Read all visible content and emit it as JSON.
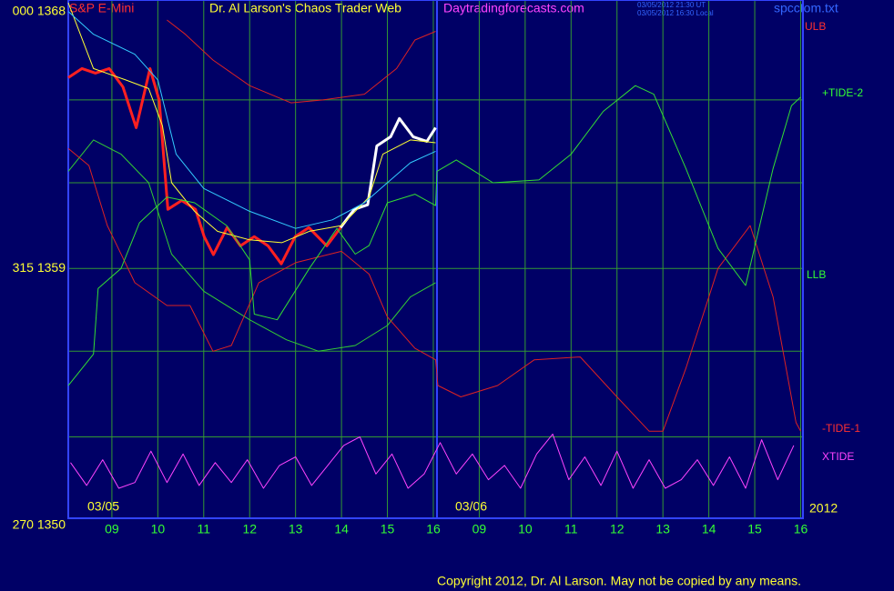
{
  "chart_data": {
    "type": "line",
    "texts": {
      "instrument": "S&P E-Mini",
      "title": "Dr. Al Larson's Chaos Trader Web",
      "site": "Daytradingforecasts.com",
      "timestamp_ut": "03/05/2012 21:30 UT",
      "timestamp_local": "03/05/2012 16:30 Local",
      "file": "spcctom.txt",
      "year": "2012",
      "copyright": "Copyright 2012, Dr. Al Larson. May not be copied by any means."
    },
    "dates": [
      "03/05",
      "03/06"
    ],
    "annotations": [
      "ULB",
      "+TIDE-2",
      "LLB",
      "-TIDE-1",
      "XTIDE"
    ],
    "xlim": [
      8.05,
      24.05
    ],
    "xticks": [
      {
        "value": 9,
        "label": "09"
      },
      10,
      11,
      12,
      13,
      14,
      15,
      16,
      {
        "value": 17,
        "label": "09"
      },
      {
        "value": 18,
        "label": "10"
      },
      {
        "value": 19,
        "label": "11"
      },
      {
        "value": 20,
        "label": "12"
      },
      {
        "value": 21,
        "label": "13"
      },
      {
        "value": 22,
        "label": "14"
      },
      {
        "value": 23,
        "label": "15"
      },
      {
        "value": 24,
        "label": "16"
      }
    ],
    "ylim": [
      1350.25,
      1368.4
    ],
    "yticks": [
      {
        "value": 1368,
        "label": "000 1368"
      },
      {
        "value": 1359,
        "label": "315 1359"
      },
      {
        "value": 1350,
        "label": "270 1350"
      }
    ],
    "ygrid": [
      1364.9,
      1362,
      1359,
      1356.1,
      1353.1
    ],
    "grid": true,
    "series": [
      {
        "color": "#ff2020",
        "width": 3,
        "x": [
          8.05,
          8.35,
          8.64,
          8.94,
          9.24,
          9.53,
          9.83,
          10.03,
          10.22,
          10.52,
          10.82,
          11.01,
          11.21,
          11.51,
          11.8,
          12.1,
          12.4,
          12.69,
          12.99,
          13.29,
          13.68,
          13.98
        ],
        "values": [
          1365.68,
          1366,
          1365.84,
          1366,
          1365.36,
          1363.93,
          1366,
          1364.88,
          1361.07,
          1361.38,
          1361.07,
          1360.11,
          1359.48,
          1360.43,
          1359.79,
          1360.11,
          1359.79,
          1359.16,
          1360.11,
          1360.43,
          1359.79,
          1360.43
        ]
      },
      {
        "color": "#ffffff",
        "width": 3,
        "x": [
          13.98,
          14.28,
          14.57,
          14.77,
          15.07,
          15.26,
          15.56,
          15.86,
          16.05
        ],
        "values": [
          1360.43,
          1361.07,
          1361.23,
          1363.29,
          1363.61,
          1364.25,
          1363.61,
          1363.45,
          1363.93
        ]
      },
      {
        "color": "#ffff33",
        "width": 1,
        "x": [
          8.05,
          8.6,
          9.3,
          9.8,
          10.1,
          10.3,
          10.8,
          11.3,
          12,
          12.7,
          13.3,
          14,
          14.6,
          14.9,
          15.5,
          16.05
        ],
        "values": [
          1368.3,
          1366,
          1365.6,
          1365.3,
          1364,
          1362,
          1361,
          1360.3,
          1360,
          1359.9,
          1360.3,
          1360.5,
          1361.5,
          1363,
          1363.5,
          1363.4
        ]
      },
      {
        "color": "#33ccff",
        "width": 1,
        "x": [
          8.05,
          8.6,
          9.5,
          10,
          10.4,
          11,
          12,
          13,
          13.8,
          14.5,
          15,
          15.5,
          16.05
        ],
        "values": [
          1368,
          1367.2,
          1366.5,
          1365.6,
          1363,
          1361.8,
          1361,
          1360.4,
          1360.7,
          1361.3,
          1362,
          1362.7,
          1363.1
        ]
      },
      {
        "color": "#dd2222",
        "width": 1,
        "x": [
          10.2,
          10.6,
          11.2,
          12,
          12.9,
          13.6,
          14.5,
          15.2,
          15.6,
          16.05
        ],
        "values": [
          1367.7,
          1367.2,
          1366.3,
          1365.4,
          1364.8,
          1364.9,
          1365.1,
          1366,
          1367,
          1367.3
        ]
      },
      {
        "color": "#33cc33",
        "width": 1,
        "x": [
          8.05,
          8.6,
          9.2,
          9.8,
          10.3,
          11,
          12,
          12.8,
          13.5,
          14.3,
          15,
          15.5,
          16.05
        ],
        "values": [
          1362.4,
          1363.5,
          1363,
          1362,
          1359.5,
          1358.2,
          1357.2,
          1356.5,
          1356.1,
          1356.3,
          1357,
          1358,
          1358.5
        ]
      },
      {
        "color": "#dd2222",
        "width": 1,
        "x": [
          8.05,
          8.5,
          8.9,
          9.5,
          10.2,
          10.7,
          11.2,
          11.6,
          12.2,
          13,
          14,
          14.6,
          15,
          15.6,
          16.05,
          16.1,
          16.6,
          17.4,
          18.2,
          19.2,
          20,
          20.7,
          21,
          21.5,
          22.2,
          22.9,
          23.4,
          23.9,
          24
        ],
        "values": [
          1363.2,
          1362.6,
          1360.5,
          1358.5,
          1357.7,
          1357.7,
          1356.1,
          1356.3,
          1358.5,
          1359.2,
          1359.6,
          1358.8,
          1357.3,
          1356.2,
          1355.8,
          1354.9,
          1354.5,
          1354.9,
          1355.8,
          1355.9,
          1354.5,
          1353.3,
          1353.3,
          1355.5,
          1359,
          1360.5,
          1358,
          1353.6,
          1353.3
        ]
      },
      {
        "color": "#33dd33",
        "width": 1,
        "x": [
          8.05,
          8.6,
          8.7,
          9.2,
          9.6,
          10.2,
          10.8,
          11.5,
          12,
          12.1,
          12.6,
          13.3,
          13.9,
          14.3,
          14.6,
          15,
          15.6,
          16.05,
          16.08,
          16.5,
          17.3,
          18.3,
          19,
          19.7,
          20.4,
          20.8,
          21.5,
          22.2,
          22.8,
          23.4,
          23.8,
          24
        ],
        "values": [
          1354.9,
          1356,
          1358.3,
          1359,
          1360.6,
          1361.5,
          1361.3,
          1360.5,
          1359.3,
          1357.4,
          1357.2,
          1359,
          1360.4,
          1359.5,
          1359.8,
          1361.3,
          1361.6,
          1361.2,
          1362.4,
          1362.8,
          1362,
          1362.1,
          1363,
          1364.5,
          1365.4,
          1365.1,
          1362.5,
          1359.7,
          1358.4,
          1362.5,
          1364.7,
          1365
        ]
      },
      {
        "color": "#ff44ff",
        "width": 1,
        "x": [
          8.1,
          8.45,
          8.8,
          9.15,
          9.5,
          9.85,
          10.2,
          10.55,
          10.9,
          11.25,
          11.6,
          11.95,
          12.3,
          12.65,
          13,
          13.35,
          13.7,
          14.05,
          14.4,
          14.75,
          15.1,
          15.45,
          15.8,
          16.15,
          16.5,
          16.85,
          17.2,
          17.55,
          17.9,
          18.25,
          18.6,
          18.95,
          19.3,
          19.65,
          20,
          20.35,
          20.7,
          21.05,
          21.4,
          21.75,
          22.1,
          22.45,
          22.8,
          23.15,
          23.5,
          23.85
        ],
        "values": [
          1352.2,
          1351.4,
          1352.3,
          1351.3,
          1351.5,
          1352.6,
          1351.5,
          1352.5,
          1351.4,
          1352.2,
          1351.5,
          1352.3,
          1351.3,
          1352.1,
          1352.4,
          1351.4,
          1352.1,
          1352.8,
          1353.1,
          1351.8,
          1352.5,
          1351.3,
          1351.8,
          1352.9,
          1351.8,
          1352.5,
          1351.6,
          1352.1,
          1351.3,
          1352.5,
          1353.2,
          1351.6,
          1352.4,
          1351.4,
          1352.6,
          1351.3,
          1352.3,
          1351.3,
          1351.6,
          1352.3,
          1351.4,
          1352.4,
          1351.3,
          1353,
          1351.6,
          1352.8
        ]
      }
    ]
  }
}
